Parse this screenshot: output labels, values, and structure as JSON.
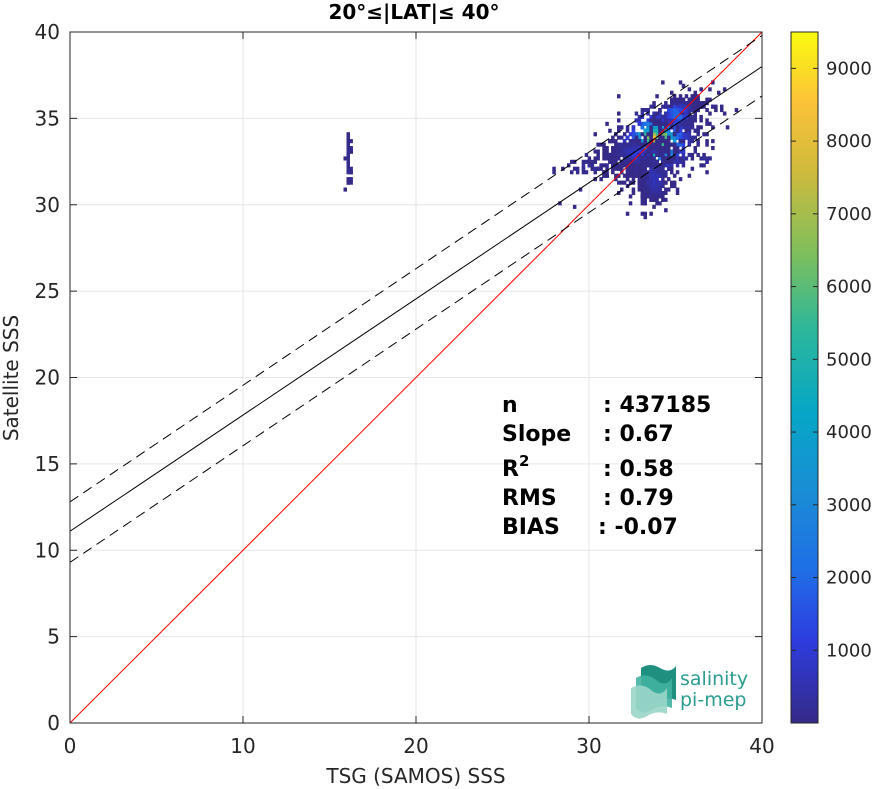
{
  "chart_data": {
    "type": "heatmap",
    "title": "20°≤|LAT|≤ 40°",
    "xlabel": "TSG (SAMOS) SSS",
    "ylabel": "Satellite SSS",
    "xlim": [
      0,
      40
    ],
    "ylim": [
      0,
      40
    ],
    "xticks": [
      0,
      10,
      20,
      30,
      40
    ],
    "yticks": [
      0,
      5,
      10,
      15,
      20,
      25,
      30,
      35,
      40
    ],
    "grid": true,
    "colorbar": {
      "range": [
        0,
        9500
      ],
      "ticks": [
        1000,
        2000,
        3000,
        4000,
        5000,
        6000,
        7000,
        8000,
        9000
      ],
      "colormap": "parula"
    },
    "lines": [
      {
        "role": "one-to-one",
        "color": "#ff0000",
        "style": "solid",
        "x": [
          0,
          40
        ],
        "y": [
          0,
          40
        ]
      },
      {
        "role": "regression",
        "color": "#000000",
        "style": "solid",
        "x": [
          0,
          40
        ],
        "y": [
          11.1,
          38.0
        ]
      },
      {
        "role": "regression-upper",
        "color": "#000000",
        "style": "dashed",
        "x": [
          0,
          40
        ],
        "y": [
          12.8,
          39.8
        ]
      },
      {
        "role": "regression-lower",
        "color": "#000000",
        "style": "dashed",
        "x": [
          0,
          40
        ],
        "y": [
          9.3,
          36.3
        ]
      }
    ],
    "density_clusters": [
      {
        "cx": 33.8,
        "cy": 33.6,
        "sx": 1.4,
        "sy": 1.2,
        "corr": 0.55,
        "peak": 9000,
        "n": 900
      },
      {
        "cx": 32.8,
        "cy": 32.9,
        "sx": 1.1,
        "sy": 0.5,
        "corr": 0.2,
        "peak": 1200,
        "n": 350
      },
      {
        "cx": 33.7,
        "cy": 31.4,
        "sx": 0.5,
        "sy": 1.0,
        "corr": 0.0,
        "peak": 800,
        "n": 250
      },
      {
        "cx": 35.0,
        "cy": 35.2,
        "sx": 0.7,
        "sy": 0.5,
        "corr": 0.6,
        "peak": 3000,
        "n": 200
      },
      {
        "cx": 16.0,
        "cy": 32.6,
        "sx": 0.07,
        "sy": 1.0,
        "corr": 0.0,
        "peak": 400,
        "n": 45
      },
      {
        "cx": 36.7,
        "cy": 32.6,
        "sx": 0.3,
        "sy": 0.3,
        "corr": 0.0,
        "peak": 300,
        "n": 14
      },
      {
        "cx": 30.0,
        "cy": 32.1,
        "sx": 1.2,
        "sy": 0.3,
        "corr": 0.0,
        "peak": 300,
        "n": 30
      }
    ],
    "stats": [
      {
        "label": "n",
        "value": ": 437185"
      },
      {
        "label": "Slope",
        "value": ": 0.67"
      },
      {
        "label": "R",
        "sup": "2",
        "value": ": 0.58"
      },
      {
        "label": "RMS",
        "value": ": 0.79"
      },
      {
        "label": "BIAS",
        "value": ": -0.07"
      }
    ]
  },
  "logo": {
    "line1": "salinity",
    "line2": "pi-mep"
  }
}
